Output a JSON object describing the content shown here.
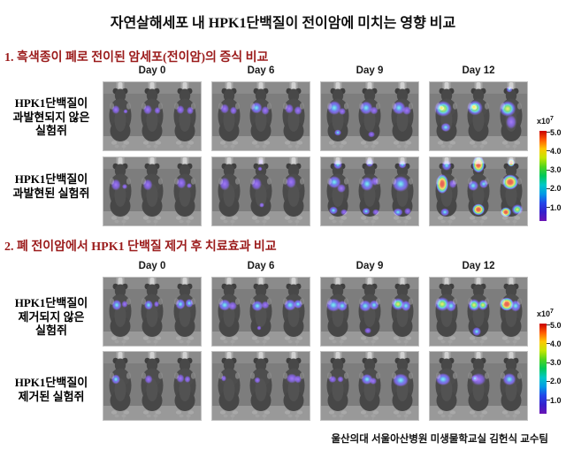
{
  "title": "자연살해세포 내 HPK1단백질이 전이암에 미치는 영향 비교",
  "credit": "울산의대 서울아산병원 미생물학교실 김헌식 교수팀",
  "colors": {
    "heading": "#9b1b1b"
  },
  "colorbar": {
    "multiplier": "x10",
    "exponent": "7",
    "ticks": [
      "5.0",
      "4.0",
      "3.0",
      "2.0",
      "1.0"
    ]
  },
  "sections": [
    {
      "heading": "1. 흑색종이 폐로 전이된 암세포(전이암)의 증식 비교",
      "days": [
        "Day 0",
        "Day 6",
        "Day 9",
        "Day 12"
      ],
      "rows": [
        {
          "label_lines": [
            "HPK1단백질이",
            "과발현되지 않은",
            "실험쥐"
          ],
          "panels": [
            {
              "blobs": [
                [
                  14,
                  31,
                  4.5,
                  5,
                  0
                ],
                [
                  25,
                  33,
                  2.5,
                  2.5,
                  0
                ],
                [
                  50,
                  31,
                  5,
                  5.5,
                  0
                ],
                [
                  61,
                  32,
                  3.5,
                  4,
                  0
                ],
                [
                  87,
                  31,
                  4.5,
                  5,
                  0
                ],
                [
                  98,
                  32,
                  4,
                  4.5,
                  0
                ]
              ]
            },
            {
              "blobs": [
                [
                  14,
                  30,
                  5,
                  5.5,
                  0
                ],
                [
                  24,
                  32,
                  4,
                  4.5,
                  0
                ],
                [
                  50,
                  29,
                  6.5,
                  6.5,
                  1
                ],
                [
                  60,
                  32,
                  4.5,
                  5,
                  0
                ],
                [
                  87,
                  30,
                  5,
                  5.5,
                  0
                ],
                [
                  97,
                  32,
                  4.5,
                  5,
                  0
                ]
              ]
            },
            {
              "blobs": [
                [
                  15,
                  29,
                  8,
                  8,
                  1
                ],
                [
                  24,
                  33,
                  4,
                  4,
                  0
                ],
                [
                  19,
                  57,
                  4,
                  3.5,
                  1
                ],
                [
                  51,
                  29,
                  7.5,
                  7.5,
                  1
                ],
                [
                  60,
                  32,
                  4.5,
                  4.5,
                  0
                ],
                [
                  57,
                  59,
                  4,
                  3.5,
                  0
                ],
                [
                  88,
                  29,
                  7.5,
                  7.5,
                  1
                ],
                [
                  97,
                  32,
                  5,
                  5,
                  0
                ]
              ]
            },
            {
              "blobs": [
                [
                  15,
                  30,
                  10,
                  9,
                  2
                ],
                [
                  13,
                  29,
                  3,
                  3,
                  3
                ],
                [
                  18,
                  51,
                  5.5,
                  5,
                  1
                ],
                [
                  51,
                  29,
                  9,
                  8.5,
                  2
                ],
                [
                  50,
                  28,
                  3.5,
                  3.5,
                  3
                ],
                [
                  88,
                  30,
                  9.5,
                  9,
                  2
                ],
                [
                  92,
                  45,
                  6,
                  8,
                  0
                ],
                [
                  90,
                  8,
                  3.5,
                  3.5,
                  1
                ]
              ]
            }
          ]
        },
        {
          "label_lines": [
            "HPK1단백질이",
            "과발현된 실험쥐"
          ],
          "panels": [
            {
              "blobs": [
                [
                  14,
                  31,
                  5.5,
                  6.5,
                  0
                ],
                [
                  24,
                  33,
                  3,
                  3,
                  0
                ],
                [
                  50,
                  31,
                  5.5,
                  6.5,
                  0
                ],
                [
                  88,
                  29,
                  5.5,
                  6.5,
                  0
                ],
                [
                  97,
                  32,
                  3,
                  3,
                  0
                ]
              ]
            },
            {
              "blobs": [
                [
                  14,
                  30,
                  6,
                  7.5,
                  0
                ],
                [
                  50,
                  30,
                  6,
                  7,
                  0
                ],
                [
                  55,
                  5,
                  3,
                  3.5,
                  0
                ],
                [
                  54,
                  13,
                  2.5,
                  2.5,
                  0
                ],
                [
                  56,
                  54,
                  2.8,
                  2.8,
                  0
                ],
                [
                  89,
                  28,
                  6,
                  7,
                  0
                ]
              ]
            },
            {
              "blobs": [
                [
                  19,
                  8,
                  5,
                  5.5,
                  1
                ],
                [
                  15,
                  28,
                  7.5,
                  7,
                  1
                ],
                [
                  23,
                  35,
                  5,
                  5,
                  0
                ],
                [
                  14,
                  60,
                  5,
                  4.5,
                  1
                ],
                [
                  26,
                  62,
                  4,
                  3.5,
                  0
                ],
                [
                  55,
                  6,
                  4.5,
                  5,
                  1
                ],
                [
                  52,
                  30,
                  7.5,
                  8,
                  1
                ],
                [
                  61,
                  27,
                  4.5,
                  5,
                  0
                ],
                [
                  51,
                  61,
                  4.5,
                  4,
                  1
                ],
                [
                  62,
                  62,
                  4,
                  3.5,
                  0
                ],
                [
                  92,
                  8,
                  4.5,
                  4.5,
                  1
                ],
                [
                  90,
                  30,
                  9.5,
                  9,
                  1
                ],
                [
                  87,
                  62,
                  5.5,
                  4.5,
                  1
                ],
                [
                  98,
                  61,
                  4,
                  4,
                  0
                ]
              ]
            },
            {
              "blobs": [
                [
                  19,
                  9,
                  5.5,
                  6,
                  1
                ],
                [
                  14,
                  30,
                  7,
                  11,
                  3
                ],
                [
                  26,
                  30,
                  4.5,
                  5,
                  0
                ],
                [
                  17,
                  62,
                  5,
                  4.5,
                  1
                ],
                [
                  55,
                  8,
                  7,
                  9.5,
                  3
                ],
                [
                  49,
                  32,
                  6,
                  6,
                  1
                ],
                [
                  61,
                  30,
                  5,
                  5,
                  1
                ],
                [
                  55,
                  59,
                  7,
                  6.5,
                  3
                ],
                [
                  92,
                  6,
                  4,
                  4.5,
                  3
                ],
                [
                  91,
                  28,
                  9,
                  8.5,
                  3
                ],
                [
                  86,
                  62,
                  6,
                  5.5,
                  3
                ],
                [
                  99,
                  59,
                  6.5,
                  6,
                  2
                ]
              ]
            }
          ]
        }
      ]
    },
    {
      "heading": "2. 폐 전이암에서 HPK1 단백질 제거 후 치료효과 비교",
      "days": [
        "Day 0",
        "Day 6",
        "Day 9",
        "Day 12"
      ],
      "rows": [
        {
          "label_lines": [
            "HPK1단백질이",
            "제거되지 않은",
            "실험쥐"
          ],
          "panels": [
            {
              "blobs": [
                [
                  15,
                  31,
                  5.5,
                  6,
                  1
                ],
                [
                  24,
                  30,
                  3.5,
                  4,
                  0
                ],
                [
                  51,
                  31,
                  5,
                  5.5,
                  1
                ],
                [
                  60,
                  30,
                  3,
                  3.5,
                  0
                ],
                [
                  87,
                  30,
                  5.5,
                  6,
                  1
                ],
                [
                  97,
                  29,
                  4.5,
                  5,
                  1
                ]
              ]
            },
            {
              "blobs": [
                [
                  14,
                  31,
                  7,
                  6.5,
                  1
                ],
                [
                  23,
                  32,
                  5,
                  5,
                  0
                ],
                [
                  51,
                  32,
                  6.5,
                  6,
                  1
                ],
                [
                  60,
                  31,
                  4.5,
                  4.5,
                  0
                ],
                [
                  53,
                  57,
                  2.5,
                  2.5,
                  0
                ],
                [
                  88,
                  31,
                  7,
                  6.5,
                  1
                ],
                [
                  97,
                  30,
                  5,
                  5,
                  1
                ]
              ]
            },
            {
              "blobs": [
                [
                  14,
                  31,
                  8.5,
                  7.5,
                  1
                ],
                [
                  24,
                  32,
                  6,
                  6,
                  1
                ],
                [
                  50,
                  32,
                  7,
                  6.5,
                  1
                ],
                [
                  60,
                  31,
                  5.5,
                  5.5,
                  1
                ],
                [
                  53,
                  60,
                  4,
                  3.5,
                  0
                ],
                [
                  87,
                  30,
                  7.5,
                  7,
                  2
                ],
                [
                  96,
                  32,
                  5.5,
                  6,
                  1
                ]
              ]
            },
            {
              "blobs": [
                [
                  14,
                  30,
                  8.5,
                  8,
                  2
                ],
                [
                  24,
                  32,
                  6,
                  6.5,
                  1
                ],
                [
                  50,
                  31,
                  7,
                  7,
                  2
                ],
                [
                  60,
                  31,
                  6,
                  6,
                  2
                ],
                [
                  53,
                  61,
                  5,
                  5,
                  1
                ],
                [
                  87,
                  30,
                  8,
                  7.5,
                  3
                ],
                [
                  97,
                  32,
                  6,
                  6.5,
                  1
                ]
              ]
            }
          ]
        },
        {
          "label_lines": [
            "HPK1단백질이",
            "제거된 실험쥐"
          ],
          "panels": [
            {
              "blobs": [
                [
                  14,
                  31,
                  5,
                  5.5,
                  1
                ],
                [
                  51,
                  31,
                  4.5,
                  5,
                  0
                ],
                [
                  87,
                  30,
                  4.5,
                  5,
                  0
                ],
                [
                  95,
                  31,
                  3.5,
                  4,
                  0
                ]
              ]
            },
            {
              "blobs": [
                [
                  13,
                  30,
                  3,
                  3.5,
                  0
                ],
                [
                  51,
                  32,
                  3.5,
                  3.5,
                  0
                ],
                [
                  90,
                  30,
                  6.5,
                  5.5,
                  0
                ],
                [
                  97,
                  31,
                  4,
                  4.5,
                  0
                ]
              ]
            },
            {
              "blobs": [
                [
                  13,
                  31,
                  4.5,
                  4,
                  0
                ],
                [
                  22,
                  31,
                  3.5,
                  3.5,
                  0
                ],
                [
                  52,
                  31,
                  6.5,
                  6,
                  1
                ],
                [
                  59,
                  33,
                  4,
                  4,
                  0
                ],
                [
                  90,
                  32,
                  9,
                  7.5,
                  1
                ]
              ]
            },
            {
              "blobs": [
                [
                  15,
                  31,
                  8.5,
                  7,
                  1
                ],
                [
                  55,
                  31,
                  8.5,
                  7,
                  0
                ],
                [
                  51,
                  30,
                  4,
                  4,
                  1
                ],
                [
                  90,
                  31,
                  7.5,
                  7,
                  1
                ]
              ]
            }
          ]
        }
      ]
    }
  ]
}
